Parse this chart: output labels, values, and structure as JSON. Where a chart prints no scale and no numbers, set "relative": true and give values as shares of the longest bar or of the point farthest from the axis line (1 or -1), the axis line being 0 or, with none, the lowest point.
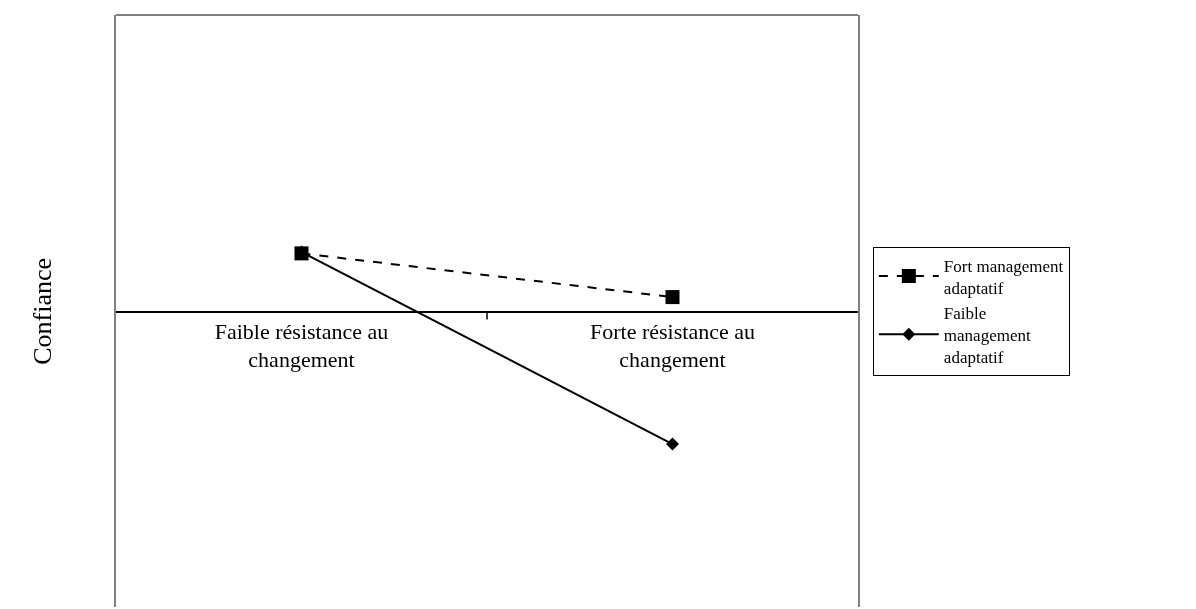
{
  "chart_data": {
    "type": "line",
    "relative": true,
    "ylabel": "Confiance",
    "categories": [
      "Faible résistance au changement",
      "Forte résistance au changement"
    ],
    "series": [
      {
        "name": "Fort management adaptatif",
        "color": "#000000",
        "values": [
          0.44,
          0.11
        ],
        "marker": "square",
        "line_style": "dashed"
      },
      {
        "name": "Faible management adaptatif",
        "color": "#000000",
        "values": [
          0.45,
          -1
        ],
        "marker": "diamond",
        "line_style": "solid"
      }
    ],
    "legend": "right"
  }
}
